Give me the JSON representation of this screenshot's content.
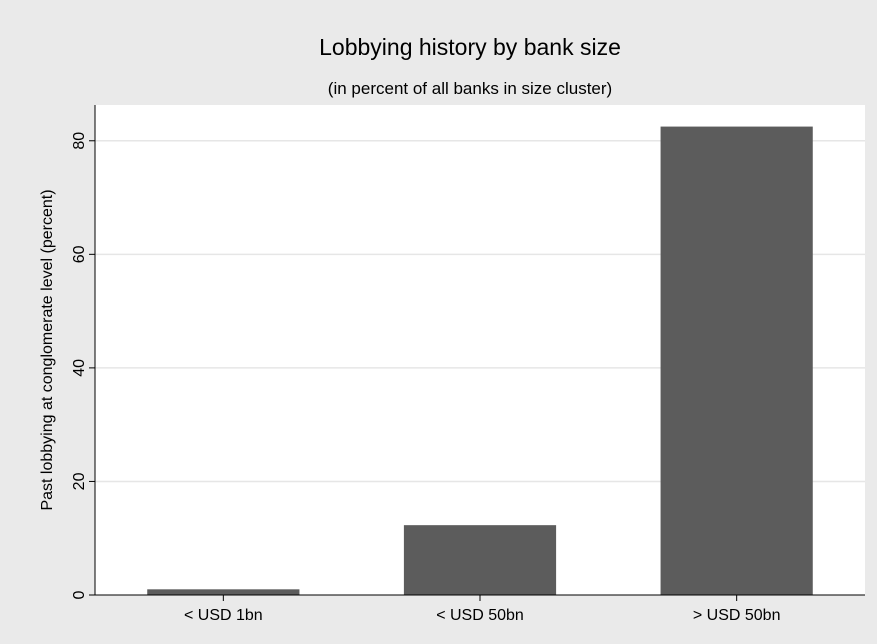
{
  "chart_data": {
    "type": "bar",
    "title": "Lobbying history by bank size",
    "subtitle": "(in percent of all banks in size cluster)",
    "xlabel": "",
    "ylabel": "Past lobbying at conglomerate level (percent)",
    "categories": [
      "< USD 1bn",
      "< USD 50bn",
      "> USD 50bn"
    ],
    "values": [
      1.0,
      12.3,
      82.5
    ],
    "ylim": [
      0,
      86.3
    ],
    "yticks": [
      0,
      20,
      40,
      60,
      80
    ],
    "grid": true,
    "legend": "none",
    "colors": {
      "bar": "#5c5c5c",
      "plot_background": "#ffffff",
      "outer_background": "#eaeaea",
      "gridline": "#e6e6e6"
    }
  }
}
